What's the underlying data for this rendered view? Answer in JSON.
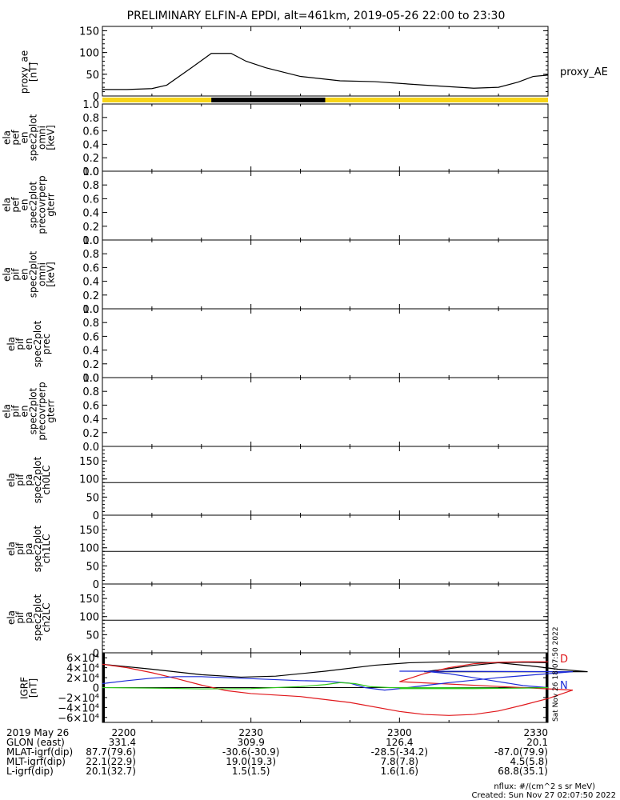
{
  "title": "PRELIMINARY ELFIN-A EPDI, alt=461km, 2019-05-26 22:00 to 23:30",
  "x_ticks": [
    "2200",
    "2230",
    "2300",
    "2330"
  ],
  "sat_label": "Sat Nov 26 18:07:50 2022",
  "footer": {
    "rows": [
      {
        "label": "2019 May 26",
        "values": [
          "2200",
          "2230",
          "2300",
          "2330"
        ]
      },
      {
        "label": "GLON (east)",
        "values": [
          "331.4",
          "309.9",
          "126.4",
          "20.1"
        ]
      },
      {
        "label": "MLAT-igrf(dip)",
        "values": [
          "87.7(79.6)",
          "-30.6(-30.9)",
          "-28.5(-34.2)",
          "-87.0(79.9)"
        ]
      },
      {
        "label": "MLT-igrf(dip)",
        "values": [
          "22.1(22.9)",
          "19.0(19.3)",
          "7.8(7.8)",
          "4.5(5.8)"
        ]
      },
      {
        "label": "L-igrf(dip)",
        "values": [
          "20.1(32.7)",
          "1.5(1.5)",
          "1.6(1.6)",
          "68.8(35.1)"
        ]
      }
    ],
    "nflux": "nflux: #/(cm^2 s sr MeV)",
    "created": "Created: Sun Nov 27 02:07:50 2022"
  },
  "panels": [
    {
      "id": "proxy_ae",
      "ylabel": [
        "proxy_ae",
        "[nT]"
      ],
      "ticks": [
        "0",
        "50",
        "100",
        "150"
      ]
    },
    {
      "id": "pef_omni",
      "ylabel": [
        "ela",
        "pef",
        "en",
        "spec2plot",
        "omni",
        "[keV]"
      ],
      "ticks": [
        "0.0",
        "0.2",
        "0.4",
        "0.6",
        "0.8",
        "1.0"
      ]
    },
    {
      "id": "pef_precovrperp",
      "ylabel": [
        "ela",
        "pef",
        "en",
        "spec2plot",
        "precovrperp",
        "gterr"
      ],
      "ticks": [
        "0.0",
        "0.2",
        "0.4",
        "0.6",
        "0.8",
        "1.0"
      ]
    },
    {
      "id": "pif_omni",
      "ylabel": [
        "ela",
        "pif",
        "en",
        "spec2plot",
        "omni",
        "[keV]"
      ],
      "ticks": [
        "0.0",
        "0.2",
        "0.4",
        "0.6",
        "0.8",
        "1.0"
      ]
    },
    {
      "id": "pif_prec",
      "ylabel": [
        "ela",
        "pif",
        "en",
        "spec2plot",
        "prec"
      ],
      "ticks": [
        "0.0",
        "0.2",
        "0.4",
        "0.6",
        "0.8",
        "1.0"
      ]
    },
    {
      "id": "pif_precovrperp",
      "ylabel": [
        "ela",
        "pif",
        "en",
        "spec2plot",
        "precovrperp",
        "gterr"
      ],
      "ticks": [
        "0.0",
        "0.2",
        "0.4",
        "0.6",
        "0.8",
        "1.0"
      ]
    },
    {
      "id": "ch0LC",
      "ylabel": [
        "ela",
        "pif",
        "pa",
        "spec2plot",
        "ch0LC"
      ],
      "ticks": [
        "0",
        "50",
        "100",
        "150"
      ]
    },
    {
      "id": "ch1LC",
      "ylabel": [
        "ela",
        "pif",
        "pa",
        "spec2plot",
        "ch1LC"
      ],
      "ticks": [
        "0",
        "50",
        "100",
        "150"
      ]
    },
    {
      "id": "ch2LC",
      "ylabel": [
        "ela",
        "pif",
        "pa",
        "spec2plot",
        "ch2LC"
      ],
      "ticks": [
        "0",
        "50",
        "100",
        "150"
      ]
    },
    {
      "id": "bgrf",
      "ylabel": [
        "IGRF",
        "[nT]"
      ],
      "ticks": [
        "−6×10⁴",
        "−4×10⁴",
        "−2×10⁴",
        "0",
        "2×10⁴",
        "4×10⁴",
        "6×10⁴"
      ]
    }
  ],
  "colors": {
    "yellow": "#f7d417",
    "black": "#000000",
    "red": "#e0181c",
    "blue": "#1c2bd6",
    "green": "#2ec41c"
  },
  "chart_data": [
    {
      "type": "line",
      "id": "proxy_ae",
      "ylim": [
        0,
        160
      ],
      "series": [
        {
          "name": "proxy_AE",
          "color": "#000000",
          "x": [
            2200,
            2205,
            2210,
            2213,
            2218,
            2222,
            2226,
            2229,
            2233,
            2240,
            2248,
            2255,
            2305,
            2315,
            2320,
            2324,
            2327,
            2330
          ],
          "y": [
            15,
            15,
            17,
            25,
            65,
            98,
            98,
            80,
            65,
            45,
            35,
            33,
            25,
            18,
            20,
            32,
            45,
            48
          ]
        }
      ]
    },
    {
      "type": "bar",
      "id": "mode_bar",
      "segments": [
        {
          "x0": 2200,
          "x1": 2222,
          "color": "#f7d417"
        },
        {
          "x0": 2222,
          "x1": 2245,
          "color": "#000000"
        },
        {
          "x0": 2245,
          "x1": 2330,
          "color": "#f7d417"
        }
      ]
    },
    {
      "type": "line",
      "id": "bgrf",
      "ylim": [
        -70000,
        70000
      ],
      "series": [
        {
          "name": "black",
          "color": "#000000",
          "x": [
            2200,
            2210,
            2220,
            2228,
            2235,
            2245,
            2255,
            2262,
            2270,
            2280,
            2287,
            2292,
            2298,
            2305,
            2310,
            2315,
            2320,
            2325,
            2330
          ],
          "y": [
            47000,
            37000,
            26000,
            21000,
            23000,
            33000,
            45000,
            50000,
            52000,
            50000,
            43000,
            37000,
            32000,
            32000,
            38000,
            45000,
            50000,
            51000,
            50000
          ]
        },
        {
          "name": "red",
          "color": "#e0181c",
          "x": [
            2200,
            2205,
            2210,
            2215,
            2220,
            2225,
            2230,
            2240,
            2250,
            2260,
            2265,
            2270,
            2275,
            2280,
            2285,
            2290,
            2295,
            2300,
            2305,
            2310,
            2315,
            2320,
            2325,
            2330
          ],
          "y": [
            47000,
            40000,
            30000,
            18000,
            5000,
            -6000,
            -12000,
            -18000,
            -30000,
            -48000,
            -54000,
            -56000,
            -54000,
            -47000,
            -35000,
            -22000,
            -5000,
            12000,
            28000,
            40000,
            48000,
            51000,
            52000,
            52000
          ]
        },
        {
          "name": "blue",
          "color": "#1c2bd6",
          "x": [
            2200,
            2205,
            2210,
            2215,
            2220,
            2230,
            2240,
            2245,
            2250,
            2253,
            2257,
            2260,
            2265,
            2270,
            2280,
            2290,
            2295,
            2300,
            2305,
            2310,
            2315,
            2320,
            2325,
            2330
          ],
          "y": [
            8000,
            14000,
            19000,
            22000,
            22000,
            18000,
            14000,
            13000,
            9000,
            0,
            -5000,
            -2000,
            4000,
            10000,
            20000,
            28000,
            32000,
            33000,
            33000,
            28000,
            20000,
            12000,
            4000,
            0
          ]
        },
        {
          "name": "green",
          "color": "#2ec41c",
          "x": [
            2200,
            2210,
            2220,
            2230,
            2240,
            2245,
            2248,
            2251,
            2254,
            2258,
            2265,
            2280,
            2300,
            2315,
            2325,
            2330
          ],
          "y": [
            0,
            -1000,
            -2500,
            -2000,
            2000,
            6000,
            10000,
            8000,
            2000,
            0,
            0,
            -1000,
            -2000,
            -2000,
            -1000,
            0
          ]
        }
      ],
      "labels": [
        "D",
        "N"
      ]
    }
  ]
}
